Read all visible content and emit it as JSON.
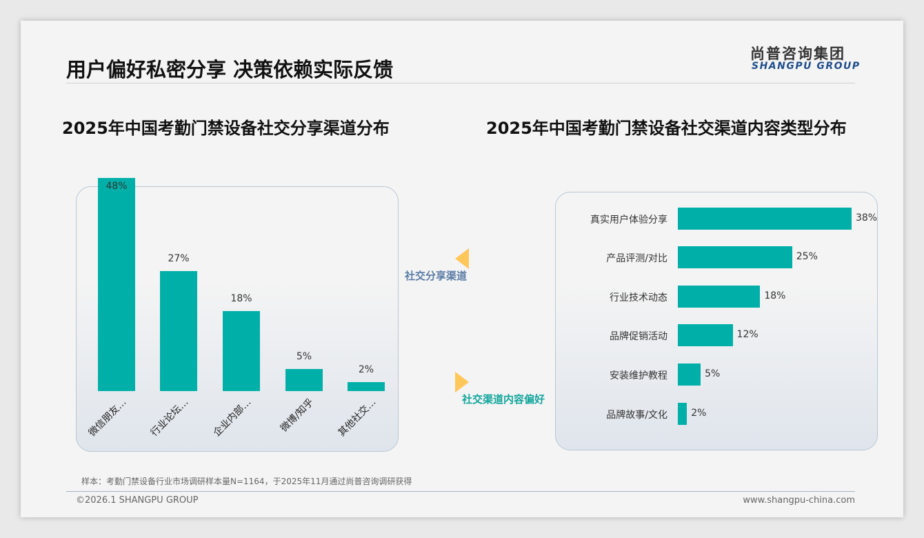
{
  "header": {
    "title": "用户偏好私密分享 决策依赖实际反馈",
    "logo_cn": "尚普咨询集团",
    "logo_en": "SHANGPU GROUP"
  },
  "connector": {
    "label_top": "社交分享渠道",
    "label_bottom": "社交渠道内容偏好",
    "accent": "#ffc65a"
  },
  "chart_data": [
    {
      "type": "bar",
      "title": "2025年中国考勤门禁设备社交分享渠道分布",
      "categories": [
        "微信朋友…",
        "行业论坛…",
        "企业内部…",
        "微博/知乎",
        "其他社交…"
      ],
      "values": [
        48,
        27,
        18,
        5,
        2
      ],
      "value_labels": [
        "48%",
        "27%",
        "18%",
        "5%",
        "2%"
      ],
      "color": "#00b0a8"
    },
    {
      "type": "bar",
      "orientation": "horizontal",
      "title": "2025年中国考勤门禁设备社交渠道内容类型分布",
      "categories": [
        "真实用户体验分享",
        "产品评测/对比",
        "行业技术动态",
        "品牌促销活动",
        "安装维护教程",
        "品牌故事/文化"
      ],
      "values": [
        38,
        25,
        18,
        12,
        5,
        2
      ],
      "value_labels": [
        "38%",
        "25%",
        "18%",
        "12%",
        "5%",
        "2%"
      ],
      "color": "#00b0a8"
    }
  ],
  "footer": {
    "note": "样本：考勤门禁设备行业市场调研样本量N=1164，于2025年11月通过尚普咨询调研获得",
    "copyright": "©2026.1 SHANGPU GROUP",
    "url": "www.shangpu-china.com"
  }
}
